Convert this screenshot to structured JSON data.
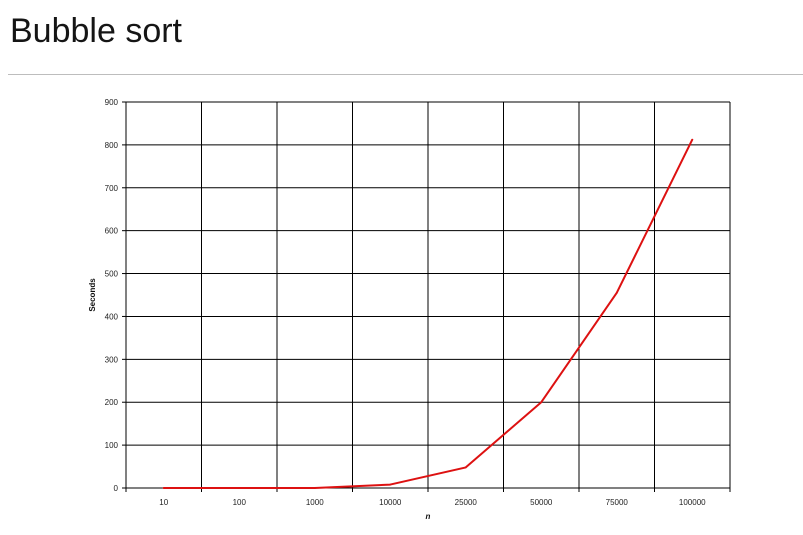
{
  "page": {
    "title": "Bubble sort"
  },
  "chart_data": {
    "type": "line",
    "categories": [
      "10",
      "100",
      "1000",
      "10000",
      "25000",
      "50000",
      "75000",
      "100000"
    ],
    "series": [
      {
        "values": [
          0,
          0,
          0,
          8,
          48,
          200,
          455,
          812
        ],
        "color": "#dd1111"
      }
    ],
    "xlabel": "n",
    "ylabel": "Seconds",
    "ylim": [
      0,
      900
    ],
    "yticks": [
      0,
      100,
      200,
      300,
      400,
      500,
      600,
      700,
      800,
      900
    ],
    "grid": true,
    "legend": "none"
  }
}
